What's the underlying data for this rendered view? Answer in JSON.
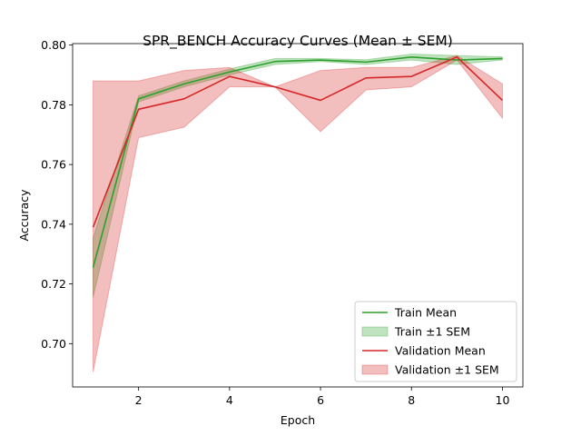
{
  "chart_data": {
    "type": "line",
    "title": "SPR_BENCH Accuracy Curves (Mean ± SEM)",
    "xlabel": "Epoch",
    "ylabel": "Accuracy",
    "x": [
      1,
      2,
      3,
      4,
      5,
      6,
      7,
      8,
      9,
      10
    ],
    "xlim": [
      0.55,
      10.45
    ],
    "ylim": [
      0.6855,
      0.8005
    ],
    "xticks": [
      2,
      4,
      6,
      8,
      10
    ],
    "yticks": [
      0.7,
      0.72,
      0.74,
      0.76,
      0.78,
      0.8
    ],
    "ytick_labels": [
      "0.70",
      "0.72",
      "0.74",
      "0.76",
      "0.78",
      "0.80"
    ],
    "grid": false,
    "legend_position": "lower-right",
    "series": [
      {
        "name": "Train Mean",
        "band_name": "Train ±1 SEM",
        "color": "#2ca02c",
        "mean": [
          0.7255,
          0.782,
          0.787,
          0.791,
          0.7945,
          0.795,
          0.7943,
          0.796,
          0.795,
          0.7955
        ],
        "lower": [
          0.7155,
          0.781,
          0.786,
          0.79,
          0.7935,
          0.7945,
          0.7935,
          0.795,
          0.7935,
          0.795
        ],
        "upper": [
          0.7355,
          0.783,
          0.788,
          0.792,
          0.7955,
          0.7955,
          0.7951,
          0.797,
          0.7965,
          0.796
        ]
      },
      {
        "name": "Validation Mean",
        "band_name": "Validation ±1 SEM",
        "color": "#d62728",
        "mean": [
          0.739,
          0.7785,
          0.782,
          0.7895,
          0.786,
          0.7815,
          0.789,
          0.7895,
          0.796,
          0.7815
        ],
        "lower": [
          0.6905,
          0.769,
          0.7725,
          0.786,
          0.786,
          0.771,
          0.785,
          0.786,
          0.795,
          0.7755
        ],
        "upper": [
          0.788,
          0.788,
          0.7915,
          0.7925,
          0.786,
          0.7915,
          0.7925,
          0.7925,
          0.7965,
          0.787
        ]
      }
    ]
  }
}
